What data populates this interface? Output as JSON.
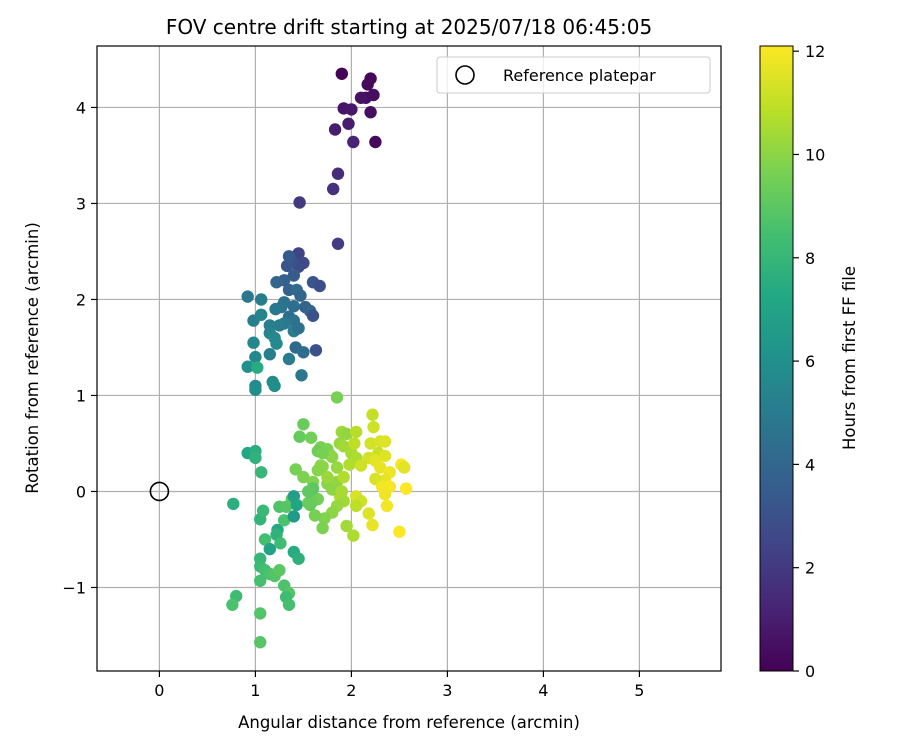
{
  "chart_data": {
    "type": "scatter",
    "title": "FOV centre drift starting at 2025/07/18 06:45:05",
    "xlabel": "Angular distance from reference (arcmin)",
    "ylabel": "Rotation from reference (arcmin)",
    "xlim": [
      -0.65,
      5.85
    ],
    "ylim": [
      -1.87,
      4.64
    ],
    "xticks": [
      0,
      1,
      2,
      3,
      4,
      5
    ],
    "yticks": [
      -1,
      0,
      1,
      2,
      3,
      4
    ],
    "ytick_labels": [
      "−1",
      "0",
      "1",
      "2",
      "3",
      "4"
    ],
    "grid": true,
    "legend": {
      "placement": "upper-right",
      "entries": [
        "Reference platepar"
      ]
    },
    "reference_point": {
      "x": 0,
      "y": 0,
      "label": "Reference platepar"
    },
    "colorbar": {
      "label": "Hours from first FF file",
      "min": 0,
      "max": 12.1,
      "ticks": [
        0,
        2,
        4,
        6,
        8,
        10,
        12
      ],
      "colormap": "viridis"
    },
    "points": [
      [
        1.9,
        4.35,
        0.1
      ],
      [
        2.2,
        4.3,
        0.2
      ],
      [
        2.17,
        4.24,
        0.3
      ],
      [
        2.15,
        4.1,
        0.4
      ],
      [
        2.23,
        4.13,
        0.5
      ],
      [
        2.1,
        4.1,
        0.6
      ],
      [
        1.92,
        3.99,
        0.7
      ],
      [
        2.0,
        3.98,
        0.8
      ],
      [
        2.2,
        3.95,
        0.5
      ],
      [
        1.97,
        3.83,
        0.9
      ],
      [
        2.25,
        3.64,
        0.3
      ],
      [
        1.83,
        3.77,
        1.0
      ],
      [
        2.02,
        3.64,
        1.2
      ],
      [
        1.86,
        3.31,
        1.5
      ],
      [
        1.81,
        3.15,
        1.7
      ],
      [
        1.46,
        3.01,
        2.0
      ],
      [
        1.86,
        2.58,
        2.1
      ],
      [
        1.45,
        2.48,
        2.4
      ],
      [
        1.5,
        2.38,
        2.6
      ],
      [
        1.45,
        2.34,
        2.8
      ],
      [
        1.38,
        2.4,
        3.0
      ],
      [
        1.33,
        2.35,
        3.2
      ],
      [
        1.35,
        2.45,
        3.4
      ],
      [
        1.4,
        2.25,
        3.5
      ],
      [
        1.3,
        2.2,
        3.7
      ],
      [
        1.6,
        2.18,
        3.2
      ],
      [
        1.67,
        2.14,
        2.9
      ],
      [
        1.35,
        2.1,
        3.8
      ],
      [
        1.22,
        2.18,
        3.9
      ],
      [
        1.43,
        2.1,
        4.2
      ],
      [
        1.47,
        2.04,
        4.0
      ],
      [
        1.4,
        1.93,
        4.4
      ],
      [
        1.3,
        1.97,
        4.5
      ],
      [
        1.27,
        1.92,
        4.7
      ],
      [
        1.21,
        1.9,
        4.8
      ],
      [
        1.52,
        1.92,
        3.8
      ],
      [
        1.57,
        1.88,
        3.9
      ],
      [
        1.6,
        1.83,
        3.0
      ],
      [
        1.35,
        1.82,
        4.3
      ],
      [
        1.4,
        1.78,
        4.6
      ],
      [
        1.3,
        1.75,
        4.9
      ],
      [
        1.25,
        1.73,
        5.0
      ],
      [
        1.15,
        1.73,
        5.1
      ],
      [
        0.92,
        2.03,
        4.8
      ],
      [
        1.06,
        2.0,
        5.0
      ],
      [
        0.98,
        1.78,
        5.2
      ],
      [
        1.06,
        1.84,
        5.4
      ],
      [
        1.15,
        1.65,
        5.3
      ],
      [
        1.2,
        1.6,
        5.6
      ],
      [
        1.22,
        1.54,
        5.7
      ],
      [
        1.4,
        1.67,
        5.1
      ],
      [
        1.45,
        1.7,
        4.5
      ],
      [
        1.42,
        1.5,
        4.1
      ],
      [
        1.63,
        1.47,
        3.0
      ],
      [
        1.5,
        1.45,
        4.3
      ],
      [
        1.35,
        1.38,
        5.0
      ],
      [
        1.48,
        1.21,
        4.8
      ],
      [
        0.98,
        1.55,
        5.5
      ],
      [
        1.0,
        1.4,
        5.6
      ],
      [
        1.15,
        1.43,
        5.2
      ],
      [
        1.18,
        1.14,
        5.8
      ],
      [
        1.2,
        1.1,
        5.9
      ],
      [
        0.92,
        1.3,
        6.0
      ],
      [
        1.0,
        1.1,
        5.7
      ],
      [
        1.0,
        1.06,
        5.9
      ],
      [
        1.02,
        1.29,
        7.4
      ],
      [
        0.92,
        0.4,
        7.2
      ],
      [
        1.0,
        0.42,
        7.5
      ],
      [
        1.0,
        0.35,
        7.8
      ],
      [
        1.06,
        0.2,
        8.0
      ],
      [
        0.77,
        -0.13,
        7.6
      ],
      [
        1.05,
        -0.29,
        7.9
      ],
      [
        1.08,
        -0.2,
        8.1
      ],
      [
        1.1,
        -0.5,
        8.4
      ],
      [
        1.15,
        -0.6,
        7.0
      ],
      [
        1.23,
        -0.4,
        7.3
      ],
      [
        1.22,
        -0.45,
        7.8
      ],
      [
        1.26,
        -0.54,
        8.3
      ],
      [
        1.3,
        -0.3,
        8.6
      ],
      [
        1.25,
        -0.16,
        8.7
      ],
      [
        1.32,
        -0.16,
        8.9
      ],
      [
        1.38,
        -0.08,
        9.0
      ],
      [
        1.4,
        -0.05,
        6.8
      ],
      [
        1.43,
        -0.14,
        7.1
      ],
      [
        1.4,
        -0.26,
        6.6
      ],
      [
        1.4,
        -0.63,
        7.4
      ],
      [
        1.45,
        -0.7,
        7.7
      ],
      [
        1.05,
        -0.7,
        8.0
      ],
      [
        1.05,
        -0.78,
        8.2
      ],
      [
        1.1,
        -0.82,
        8.4
      ],
      [
        1.15,
        -0.86,
        8.6
      ],
      [
        1.2,
        -0.88,
        8.8
      ],
      [
        1.25,
        -0.82,
        9.0
      ],
      [
        1.05,
        -0.93,
        8.5
      ],
      [
        1.3,
        -0.98,
        8.7
      ],
      [
        1.35,
        -1.06,
        8.9
      ],
      [
        1.32,
        -1.1,
        8.3
      ],
      [
        1.35,
        -1.18,
        8.5
      ],
      [
        0.8,
        -1.09,
        8.3
      ],
      [
        0.76,
        -1.18,
        8.6
      ],
      [
        1.05,
        -1.27,
        8.8
      ],
      [
        1.05,
        -1.57,
        8.9
      ],
      [
        1.5,
        0.7,
        9.3
      ],
      [
        1.46,
        0.57,
        9.2
      ],
      [
        1.58,
        0.56,
        9.5
      ],
      [
        1.68,
        0.46,
        9.6
      ],
      [
        1.75,
        0.44,
        9.7
      ],
      [
        1.78,
        0.38,
        9.8
      ],
      [
        1.65,
        0.42,
        9.4
      ],
      [
        1.7,
        0.26,
        9.9
      ],
      [
        1.42,
        0.23,
        9.6
      ],
      [
        1.5,
        0.15,
        9.7
      ],
      [
        1.6,
        0.1,
        9.8
      ],
      [
        1.68,
        0.27,
        10.0
      ],
      [
        1.85,
        0.98,
        9.6
      ],
      [
        1.9,
        0.62,
        10.3
      ],
      [
        1.95,
        0.6,
        10.1
      ],
      [
        1.88,
        0.5,
        10.2
      ],
      [
        1.92,
        0.47,
        10.4
      ],
      [
        2.0,
        0.4,
        10.5
      ],
      [
        2.05,
        0.35,
        10.6
      ],
      [
        2.05,
        0.62,
        10.8
      ],
      [
        1.98,
        0.28,
        10.7
      ],
      [
        1.85,
        0.25,
        10.2
      ],
      [
        2.22,
        0.8,
        11.0
      ],
      [
        2.23,
        0.67,
        11.2
      ],
      [
        2.2,
        0.5,
        11.3
      ],
      [
        2.3,
        0.52,
        11.4
      ],
      [
        2.35,
        0.52,
        11.5
      ],
      [
        2.28,
        0.4,
        11.1
      ],
      [
        2.18,
        0.35,
        11.3
      ],
      [
        2.25,
        0.32,
        11.6
      ],
      [
        2.3,
        0.25,
        11.7
      ],
      [
        2.35,
        0.37,
        11.5
      ],
      [
        2.1,
        0.27,
        11.2
      ],
      [
        2.4,
        0.2,
        11.8
      ],
      [
        2.35,
        0.12,
        11.7
      ],
      [
        2.25,
        0.13,
        11.4
      ],
      [
        2.32,
        0.05,
        11.9
      ],
      [
        2.4,
        0.05,
        12.0
      ],
      [
        2.35,
        -0.03,
        11.8
      ],
      [
        2.37,
        -0.15,
        11.9
      ],
      [
        2.52,
        0.28,
        12.0
      ],
      [
        2.55,
        0.25,
        11.6
      ],
      [
        2.57,
        0.03,
        12.1
      ],
      [
        2.5,
        -0.42,
        12.1
      ],
      [
        2.18,
        -0.23,
        11.5
      ],
      [
        2.22,
        -0.35,
        11.7
      ],
      [
        2.05,
        -0.05,
        11.4
      ],
      [
        2.1,
        -0.1,
        11.2
      ],
      [
        2.05,
        -0.15,
        10.9
      ],
      [
        1.88,
        -0.05,
        10.6
      ],
      [
        1.92,
        -0.1,
        10.4
      ],
      [
        1.85,
        -0.15,
        10.2
      ],
      [
        1.8,
        -0.22,
        10.0
      ],
      [
        1.72,
        -0.28,
        9.8
      ],
      [
        1.7,
        -0.38,
        9.7
      ],
      [
        1.65,
        -0.08,
        9.5
      ],
      [
        1.6,
        -0.1,
        9.4
      ],
      [
        1.57,
        -0.14,
        9.2
      ],
      [
        1.55,
        -0.12,
        9.3
      ],
      [
        1.75,
        0.08,
        9.9
      ],
      [
        1.8,
        0.02,
        10.0
      ],
      [
        1.85,
        0.1,
        10.1
      ],
      [
        1.62,
        -0.25,
        9.6
      ],
      [
        1.75,
        0.15,
        10.3
      ],
      [
        1.95,
        -0.36,
        10.4
      ],
      [
        2.02,
        -0.46,
        10.6
      ],
      [
        1.9,
        0.0,
        10.5
      ],
      [
        1.8,
        0.36,
        10.0
      ],
      [
        1.7,
        0.4,
        9.6
      ],
      [
        1.92,
        0.15,
        10.7
      ],
      [
        2.03,
        0.5,
        10.9
      ],
      [
        1.6,
        0.03,
        9.0
      ],
      [
        1.55,
        0.0,
        9.1
      ],
      [
        1.65,
        0.22,
        9.9
      ]
    ]
  }
}
